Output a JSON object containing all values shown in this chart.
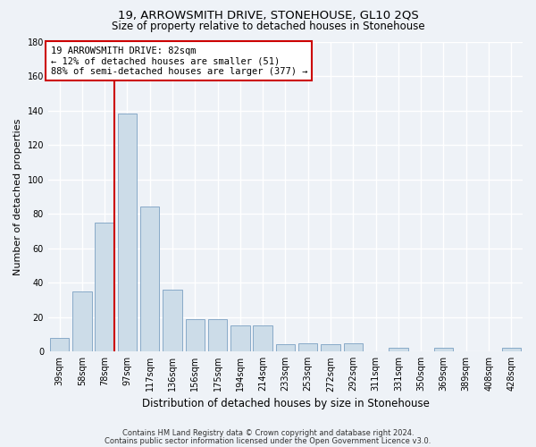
{
  "title": "19, ARROWSMITH DRIVE, STONEHOUSE, GL10 2QS",
  "subtitle": "Size of property relative to detached houses in Stonehouse",
  "xlabel": "Distribution of detached houses by size in Stonehouse",
  "ylabel": "Number of detached properties",
  "bar_color": "#ccdce8",
  "bar_edge_color": "#88aac8",
  "categories": [
    "39sqm",
    "58sqm",
    "78sqm",
    "97sqm",
    "117sqm",
    "136sqm",
    "156sqm",
    "175sqm",
    "194sqm",
    "214sqm",
    "233sqm",
    "253sqm",
    "272sqm",
    "292sqm",
    "311sqm",
    "331sqm",
    "350sqm",
    "369sqm",
    "389sqm",
    "408sqm",
    "428sqm"
  ],
  "values": [
    8,
    35,
    75,
    138,
    84,
    36,
    19,
    19,
    15,
    15,
    4,
    5,
    4,
    5,
    0,
    2,
    0,
    2,
    0,
    0,
    2
  ],
  "vline_bin_index": 2,
  "annotation_title": "19 ARROWSMITH DRIVE: 82sqm",
  "annotation_line1": "← 12% of detached houses are smaller (51)",
  "annotation_line2": "88% of semi-detached houses are larger (377) →",
  "annotation_color": "#cc0000",
  "footer1": "Contains HM Land Registry data © Crown copyright and database right 2024.",
  "footer2": "Contains public sector information licensed under the Open Government Licence v3.0.",
  "ylim": [
    0,
    180
  ],
  "yticks": [
    0,
    20,
    40,
    60,
    80,
    100,
    120,
    140,
    160,
    180
  ],
  "background_color": "#eef2f7",
  "grid_color": "#ffffff",
  "title_fontsize": 9.5,
  "subtitle_fontsize": 8.5,
  "ylabel_fontsize": 8,
  "xlabel_fontsize": 8.5,
  "tick_fontsize": 7,
  "annotation_fontsize": 7.5,
  "footer_fontsize": 6
}
